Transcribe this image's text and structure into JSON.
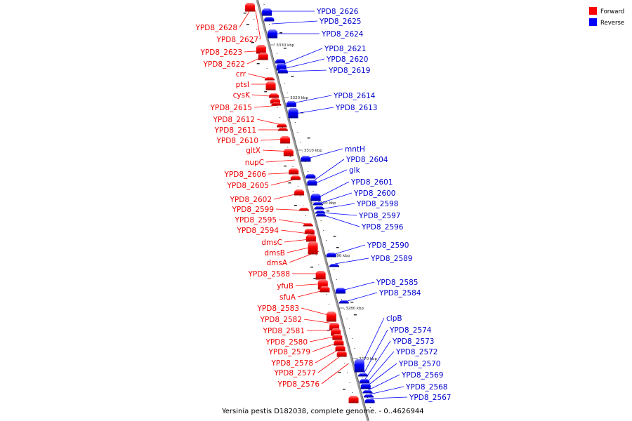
{
  "caption": "Yersinia pestis D182038, complete genome. - 0..4626944",
  "legend": {
    "forward": {
      "label": "Forward",
      "color": "#ff0000"
    },
    "reverse": {
      "label": "Reverse",
      "color": "#0000ff"
    }
  },
  "colors": {
    "forward": "#ff0000",
    "reverse": "#0000ff",
    "axis": "#808080"
  },
  "ticks": [
    "3330 kbp",
    "3320 kbp",
    "3310 kbp",
    "3300 kbp",
    "3290 kbp",
    "3280 kbp",
    "3270 kbp"
  ],
  "forward_labels": [
    "YPD8_2628",
    "YPD8_2627",
    "YPD8_2623",
    "YPD8_2622",
    "crr",
    "ptsI",
    "cysK",
    "YPD8_2615",
    "YPD8_2612",
    "YPD8_2611",
    "YPD8_2610",
    "gltX",
    "nupC",
    "YPD8_2606",
    "YPD8_2605",
    "YPD8_2602",
    "YPD8_2599",
    "YPD8_2595",
    "YPD8_2594",
    "dmsC",
    "dmsB",
    "dmsA",
    "YPD8_2588",
    "yfuB",
    "sfuA",
    "YPD8_2583",
    "YPD8_2582",
    "YPD8_2581",
    "YPD8_2580",
    "YPD8_2579",
    "YPD8_2578",
    "YPD8_2577",
    "YPD8_2576"
  ],
  "reverse_labels": [
    "YPD8_2626",
    "YPD8_2625",
    "YPD8_2624",
    "YPD8_2621",
    "YPD8_2620",
    "YPD8_2619",
    "YPD8_2614",
    "YPD8_2613",
    "mntH",
    "YPD8_2604",
    "glk",
    "YPD8_2601",
    "YPD8_2600",
    "YPD8_2598",
    "YPD8_2597",
    "YPD8_2596",
    "YPD8_2590",
    "YPD8_2589",
    "YPD8_2585",
    "YPD8_2584",
    "clpB",
    "YPD8_2574",
    "YPD8_2573",
    "YPD8_2572",
    "YPD8_2570",
    "YPD8_2569",
    "YPD8_2568",
    "YPD8_2567"
  ]
}
